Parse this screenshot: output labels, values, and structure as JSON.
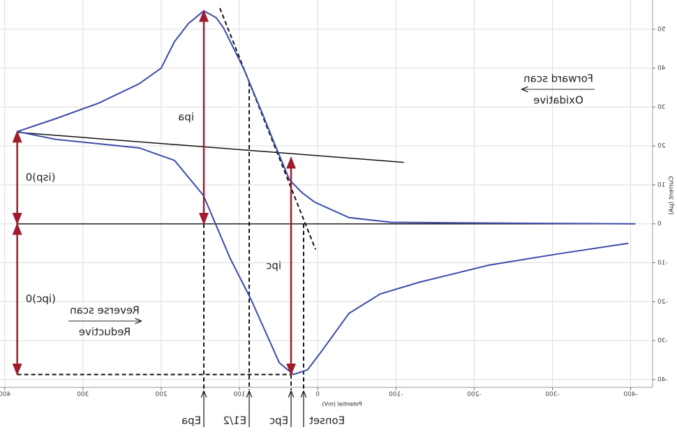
{
  "chart_data": {
    "type": "line",
    "x_label": "Potential (mV)",
    "y_label": "Current (μA)",
    "xlim": [
      -428,
      406
    ],
    "ylim": [
      -42,
      57.5
    ],
    "xticks": [
      400,
      300,
      200,
      100,
      0,
      -100,
      -200,
      -300,
      -400
    ],
    "yticks": [
      -40,
      -30,
      -20,
      -10,
      0,
      10,
      20,
      30,
      40,
      50
    ],
    "grid": true,
    "x": [
      384,
      335,
      280,
      228,
      200,
      183,
      165,
      145.5,
      130,
      120.5,
      94,
      70,
      54,
      36,
      20,
      4,
      -40,
      -94,
      -219,
      -406,
      null,
      -397,
      -308,
      -219,
      -130,
      -80,
      -40,
      -4,
      13,
      31,
      49,
      85,
      112,
      146,
      183,
      228,
      335,
      384
    ],
    "series": [
      {
        "color": "#3b4ba8",
        "values": [
          23.7,
          27,
          31,
          36,
          40,
          46.8,
          51.5,
          54.7,
          53,
          50.4,
          39.6,
          28,
          20,
          11.3,
          8,
          5.6,
          1.6,
          0.4,
          0.2,
          0,
          null,
          -5,
          -7.7,
          -10.6,
          -15,
          -18,
          -23,
          -33,
          -37.5,
          -38.7,
          -35.7,
          -19.5,
          -8.8,
          7.3,
          16.3,
          19.5,
          21.7,
          23.7
        ]
      }
    ],
    "baseline": {
      "x": [
        384,
        -110
      ],
      "y": [
        23.5,
        15.8
      ]
    },
    "tangent": {
      "x": [
        125,
        2.7
      ],
      "y": [
        55.4,
        -6.6
      ]
    },
    "currents": [
      {
        "label": "ipa",
        "x": 145.5,
        "from": 0,
        "to": 54.7
      },
      {
        "label": "ipc",
        "x": 34,
        "from": -38.7,
        "to": 17
      },
      {
        "label": "(isp)0",
        "x": 384,
        "from": 0,
        "to": 23.7
      },
      {
        "label": "(ipc)0",
        "x": 384,
        "from": 0,
        "to": -38.7
      }
    ],
    "potentials": [
      {
        "label": "Epa",
        "x": 145.5,
        "y": 0
      },
      {
        "label": "E1/2",
        "x": 87.5,
        "y": 36.4
      },
      {
        "label": "Epc",
        "x": 34,
        "y": -38.7
      },
      {
        "label": "Eonset",
        "x": 18,
        "y": 0
      }
    ],
    "notes": [
      {
        "text": "Forward scan",
        "sub": "Oxidative"
      },
      {
        "text": "Reverse scan",
        "sub": "Reductive"
      }
    ]
  }
}
